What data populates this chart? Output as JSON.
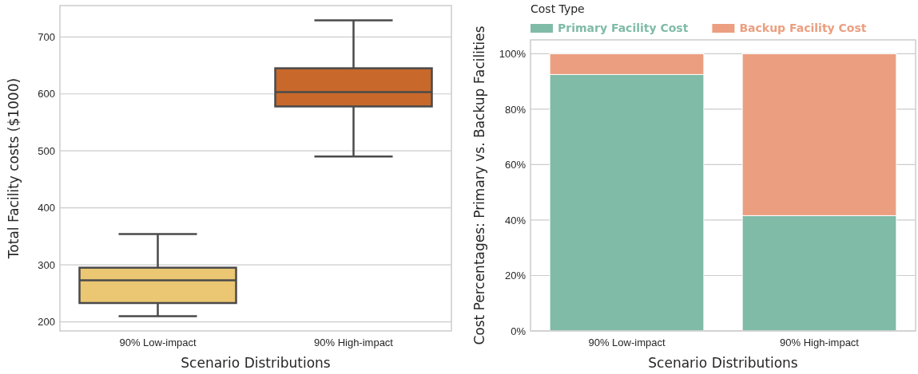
{
  "chart_data": [
    {
      "type": "box",
      "xlabel": "Scenario Distributions",
      "ylabel": "Total Facility costs ($1000)",
      "categories": [
        "90% Low-impact",
        "90% High-impact"
      ],
      "colors": [
        "#ebc673",
        "#c8692b"
      ],
      "boxes": [
        {
          "low": 210,
          "q1": 233,
          "median": 273,
          "q3": 295,
          "high": 354
        },
        {
          "low": 490,
          "q1": 578,
          "median": 603,
          "q3": 645,
          "high": 729
        }
      ],
      "ylim": [
        184,
        755
      ],
      "yticks": [
        200,
        300,
        400,
        500,
        600,
        700
      ],
      "grid": "y"
    },
    {
      "type": "bar",
      "stacked": true,
      "xlabel": "Scenario Distributions",
      "ylabel": "Cost Percentages: Primary vs. Backup Facilities",
      "categories": [
        "90% Low-impact",
        "90% High-impact"
      ],
      "series": [
        {
          "name": "Primary Facility Cost",
          "color": "#80bba8",
          "values": [
            92.5,
            41.6
          ]
        },
        {
          "name": "Backup Facility Cost",
          "color": "#eb9f80",
          "values": [
            7.5,
            58.4
          ]
        }
      ],
      "ylim": [
        0,
        105
      ],
      "yticks": [
        {
          "value": 0,
          "label": "0%"
        },
        {
          "value": 20,
          "label": "20%"
        },
        {
          "value": 40,
          "label": "40%"
        },
        {
          "value": 60,
          "label": "60%"
        },
        {
          "value": 80,
          "label": "80%"
        },
        {
          "value": 100,
          "label": "100%"
        }
      ],
      "grid": "y",
      "legend": "top",
      "legend_title": "Cost Type"
    }
  ]
}
